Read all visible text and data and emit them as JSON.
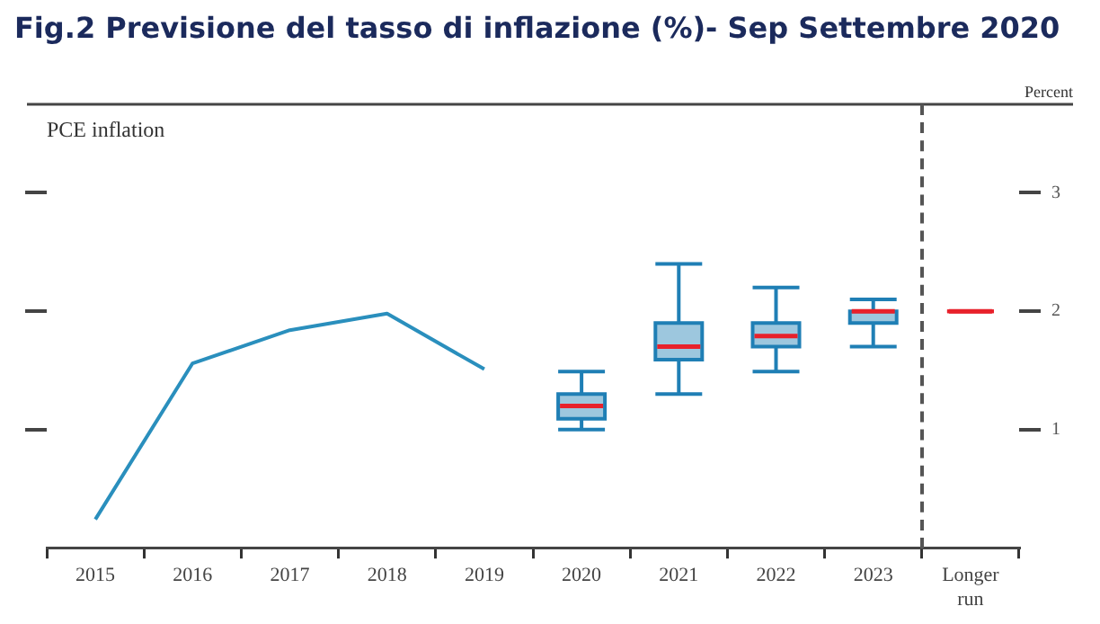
{
  "chart_data": {
    "type": "box",
    "title": "Fig.2 Previsione del tasso di inflazione (%)- Sep Settembre 2020",
    "ylabel": "Percent",
    "annotations": [
      "PCE inflation"
    ],
    "categories": [
      "2015",
      "2016",
      "2017",
      "2018",
      "2019",
      "2020",
      "2021",
      "2022",
      "2023",
      "Longer run"
    ],
    "series": [
      {
        "type": "line",
        "color": "#2a8fbd",
        "values": [
          0.24,
          1.56,
          1.84,
          1.98,
          1.51,
          null,
          null,
          null,
          null,
          null
        ]
      },
      {
        "type": "box",
        "color": "#1f7fb5",
        "boxes": [
          null,
          null,
          null,
          null,
          null,
          {
            "low": 1.0,
            "q1": 1.09,
            "median": 1.2,
            "q3": 1.3,
            "high": 1.49
          },
          {
            "low": 1.3,
            "q1": 1.59,
            "median": 1.7,
            "q3": 1.9,
            "high": 2.4
          },
          {
            "low": 1.49,
            "q1": 1.7,
            "median": 1.79,
            "q3": 1.9,
            "high": 2.2
          },
          {
            "low": 1.7,
            "q1": 1.9,
            "median": 2.0,
            "q3": 2.0,
            "high": 2.1
          },
          null
        ]
      },
      {
        "color": "#e8212b",
        "boxes": [
          null,
          null,
          null,
          null,
          null,
          null,
          null,
          null,
          null,
          {
            "low": 2.0,
            "q1": 2.0,
            "median": 2.0,
            "q3": 2.0,
            "high": 2.0
          }
        ]
      }
    ],
    "ylim": [
      0,
      3.75
    ],
    "yticks": [
      1,
      2,
      3
    ],
    "grid": false,
    "legend": false
  }
}
